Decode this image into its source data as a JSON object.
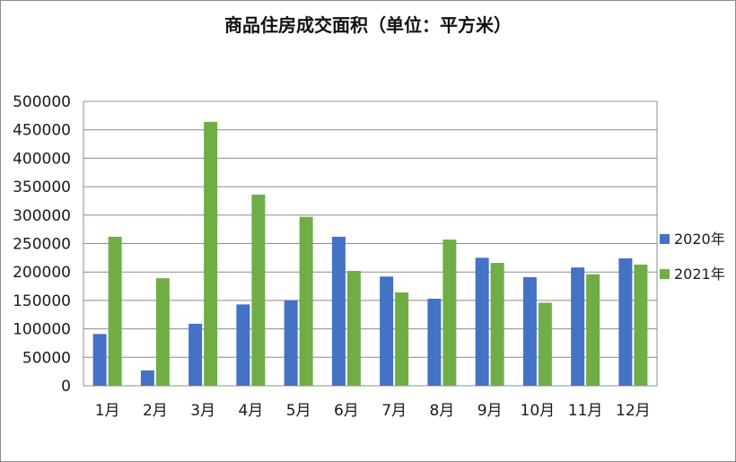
{
  "chart_data": {
    "type": "bar",
    "title": "商品住房成交面积（单位：平方米）",
    "xlabel": "",
    "ylabel": "",
    "categories": [
      "1月",
      "2月",
      "3月",
      "4月",
      "5月",
      "6月",
      "7月",
      "8月",
      "9月",
      "10月",
      "11月",
      "12月"
    ],
    "series": [
      {
        "name": "2020年",
        "color": "#4472C4",
        "values": [
          91000,
          27000,
          109000,
          143000,
          150000,
          262000,
          192000,
          153000,
          225000,
          191000,
          208000,
          224000
        ]
      },
      {
        "name": "2021年",
        "color": "#70AD47",
        "values": [
          262000,
          189000,
          464000,
          336000,
          297000,
          202000,
          164000,
          257000,
          216000,
          146000,
          196000,
          213000
        ]
      }
    ],
    "ylim": [
      0,
      500000
    ],
    "yticks": [
      0,
      50000,
      100000,
      150000,
      200000,
      250000,
      300000,
      350000,
      400000,
      450000,
      500000
    ],
    "grid": true,
    "legend_position": "right"
  }
}
